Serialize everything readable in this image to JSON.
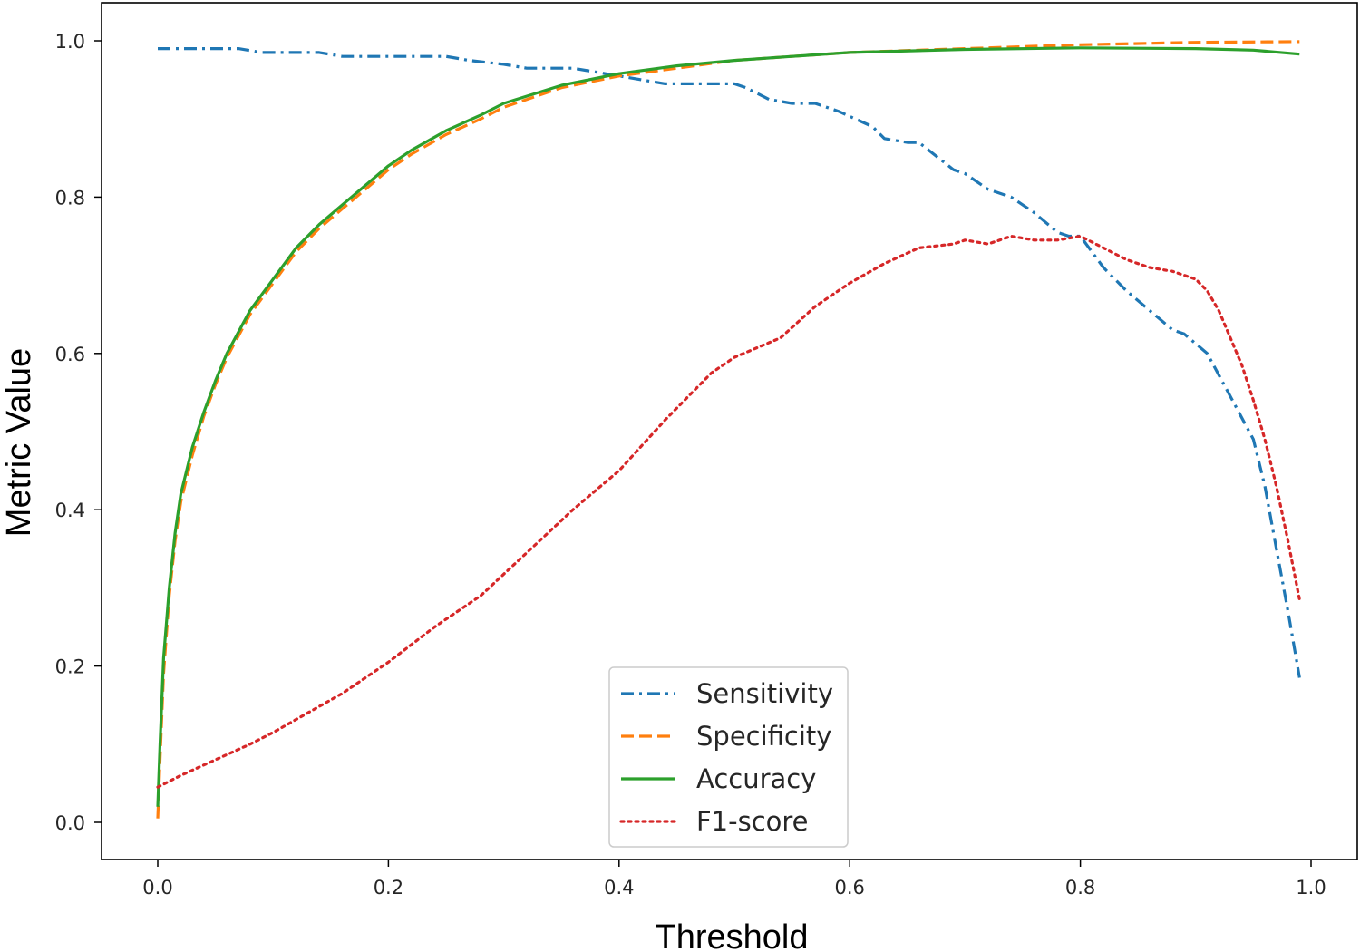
{
  "chart_data": {
    "type": "line",
    "xlabel": "Threshold",
    "ylabel": "Metric Value",
    "xlim": [
      -0.05,
      1.04
    ],
    "ylim": [
      -0.05,
      1.04
    ],
    "xticks": [
      "0.0",
      "0.2",
      "0.4",
      "0.6",
      "0.8",
      "1.0"
    ],
    "yticks": [
      "0.0",
      "0.2",
      "0.4",
      "0.6",
      "0.8",
      "1.0"
    ],
    "grid": false,
    "legend_position": "lower-center",
    "series": [
      {
        "name": "Sensitivity",
        "color": "#1f77b4",
        "dash": "dash-dot",
        "points": [
          [
            0.0,
            0.99
          ],
          [
            0.04,
            0.99
          ],
          [
            0.07,
            0.99
          ],
          [
            0.09,
            0.985
          ],
          [
            0.14,
            0.985
          ],
          [
            0.16,
            0.98
          ],
          [
            0.2,
            0.98
          ],
          [
            0.25,
            0.98
          ],
          [
            0.27,
            0.975
          ],
          [
            0.3,
            0.97
          ],
          [
            0.32,
            0.965
          ],
          [
            0.36,
            0.965
          ],
          [
            0.4,
            0.955
          ],
          [
            0.42,
            0.95
          ],
          [
            0.44,
            0.945
          ],
          [
            0.5,
            0.945
          ],
          [
            0.51,
            0.94
          ],
          [
            0.53,
            0.925
          ],
          [
            0.55,
            0.92
          ],
          [
            0.57,
            0.92
          ],
          [
            0.59,
            0.91
          ],
          [
            0.62,
            0.89
          ],
          [
            0.63,
            0.875
          ],
          [
            0.65,
            0.87
          ],
          [
            0.66,
            0.87
          ],
          [
            0.69,
            0.835
          ],
          [
            0.7,
            0.83
          ],
          [
            0.72,
            0.81
          ],
          [
            0.74,
            0.8
          ],
          [
            0.76,
            0.78
          ],
          [
            0.78,
            0.755
          ],
          [
            0.79,
            0.75
          ],
          [
            0.8,
            0.75
          ],
          [
            0.82,
            0.71
          ],
          [
            0.84,
            0.68
          ],
          [
            0.86,
            0.655
          ],
          [
            0.88,
            0.63
          ],
          [
            0.89,
            0.625
          ],
          [
            0.91,
            0.6
          ],
          [
            0.93,
            0.545
          ],
          [
            0.95,
            0.49
          ],
          [
            0.96,
            0.43
          ],
          [
            0.97,
            0.35
          ],
          [
            0.98,
            0.27
          ],
          [
            0.99,
            0.185
          ]
        ]
      },
      {
        "name": "Specificity",
        "color": "#ff7f0e",
        "dash": "dashed",
        "points": [
          [
            0.0,
            0.005
          ],
          [
            0.002,
            0.08
          ],
          [
            0.005,
            0.19
          ],
          [
            0.01,
            0.29
          ],
          [
            0.015,
            0.36
          ],
          [
            0.02,
            0.41
          ],
          [
            0.03,
            0.47
          ],
          [
            0.04,
            0.52
          ],
          [
            0.05,
            0.56
          ],
          [
            0.06,
            0.595
          ],
          [
            0.08,
            0.65
          ],
          [
            0.1,
            0.69
          ],
          [
            0.12,
            0.73
          ],
          [
            0.14,
            0.76
          ],
          [
            0.16,
            0.785
          ],
          [
            0.18,
            0.81
          ],
          [
            0.2,
            0.835
          ],
          [
            0.22,
            0.855
          ],
          [
            0.25,
            0.88
          ],
          [
            0.28,
            0.9
          ],
          [
            0.3,
            0.915
          ],
          [
            0.35,
            0.94
          ],
          [
            0.4,
            0.955
          ],
          [
            0.45,
            0.965
          ],
          [
            0.5,
            0.975
          ],
          [
            0.55,
            0.98
          ],
          [
            0.6,
            0.985
          ],
          [
            0.7,
            0.99
          ],
          [
            0.8,
            0.995
          ],
          [
            0.9,
            0.998
          ],
          [
            0.99,
            0.999
          ]
        ]
      },
      {
        "name": "Accuracy",
        "color": "#2ca02c",
        "dash": "solid",
        "points": [
          [
            0.0,
            0.02
          ],
          [
            0.002,
            0.1
          ],
          [
            0.005,
            0.21
          ],
          [
            0.01,
            0.3
          ],
          [
            0.015,
            0.37
          ],
          [
            0.02,
            0.42
          ],
          [
            0.03,
            0.48
          ],
          [
            0.04,
            0.525
          ],
          [
            0.05,
            0.565
          ],
          [
            0.06,
            0.6
          ],
          [
            0.08,
            0.655
          ],
          [
            0.1,
            0.695
          ],
          [
            0.12,
            0.735
          ],
          [
            0.14,
            0.765
          ],
          [
            0.16,
            0.79
          ],
          [
            0.18,
            0.815
          ],
          [
            0.2,
            0.84
          ],
          [
            0.22,
            0.86
          ],
          [
            0.25,
            0.885
          ],
          [
            0.28,
            0.905
          ],
          [
            0.3,
            0.92
          ],
          [
            0.35,
            0.943
          ],
          [
            0.4,
            0.958
          ],
          [
            0.45,
            0.968
          ],
          [
            0.5,
            0.975
          ],
          [
            0.55,
            0.98
          ],
          [
            0.6,
            0.985
          ],
          [
            0.7,
            0.989
          ],
          [
            0.8,
            0.991
          ],
          [
            0.9,
            0.99
          ],
          [
            0.95,
            0.988
          ],
          [
            0.99,
            0.983
          ]
        ]
      },
      {
        "name": "F1-score",
        "color": "#d62728",
        "dash": "dotted",
        "points": [
          [
            0.0,
            0.045
          ],
          [
            0.02,
            0.06
          ],
          [
            0.05,
            0.08
          ],
          [
            0.08,
            0.1
          ],
          [
            0.1,
            0.115
          ],
          [
            0.13,
            0.14
          ],
          [
            0.16,
            0.165
          ],
          [
            0.2,
            0.205
          ],
          [
            0.24,
            0.25
          ],
          [
            0.28,
            0.29
          ],
          [
            0.32,
            0.345
          ],
          [
            0.36,
            0.4
          ],
          [
            0.4,
            0.45
          ],
          [
            0.44,
            0.515
          ],
          [
            0.48,
            0.575
          ],
          [
            0.5,
            0.595
          ],
          [
            0.54,
            0.62
          ],
          [
            0.57,
            0.66
          ],
          [
            0.6,
            0.69
          ],
          [
            0.63,
            0.715
          ],
          [
            0.66,
            0.735
          ],
          [
            0.69,
            0.74
          ],
          [
            0.7,
            0.745
          ],
          [
            0.72,
            0.74
          ],
          [
            0.74,
            0.75
          ],
          [
            0.76,
            0.745
          ],
          [
            0.78,
            0.745
          ],
          [
            0.8,
            0.75
          ],
          [
            0.82,
            0.735
          ],
          [
            0.84,
            0.72
          ],
          [
            0.86,
            0.71
          ],
          [
            0.88,
            0.705
          ],
          [
            0.9,
            0.695
          ],
          [
            0.91,
            0.68
          ],
          [
            0.92,
            0.655
          ],
          [
            0.93,
            0.62
          ],
          [
            0.94,
            0.585
          ],
          [
            0.95,
            0.54
          ],
          [
            0.96,
            0.49
          ],
          [
            0.97,
            0.43
          ],
          [
            0.98,
            0.36
          ],
          [
            0.99,
            0.285
          ]
        ]
      }
    ]
  }
}
